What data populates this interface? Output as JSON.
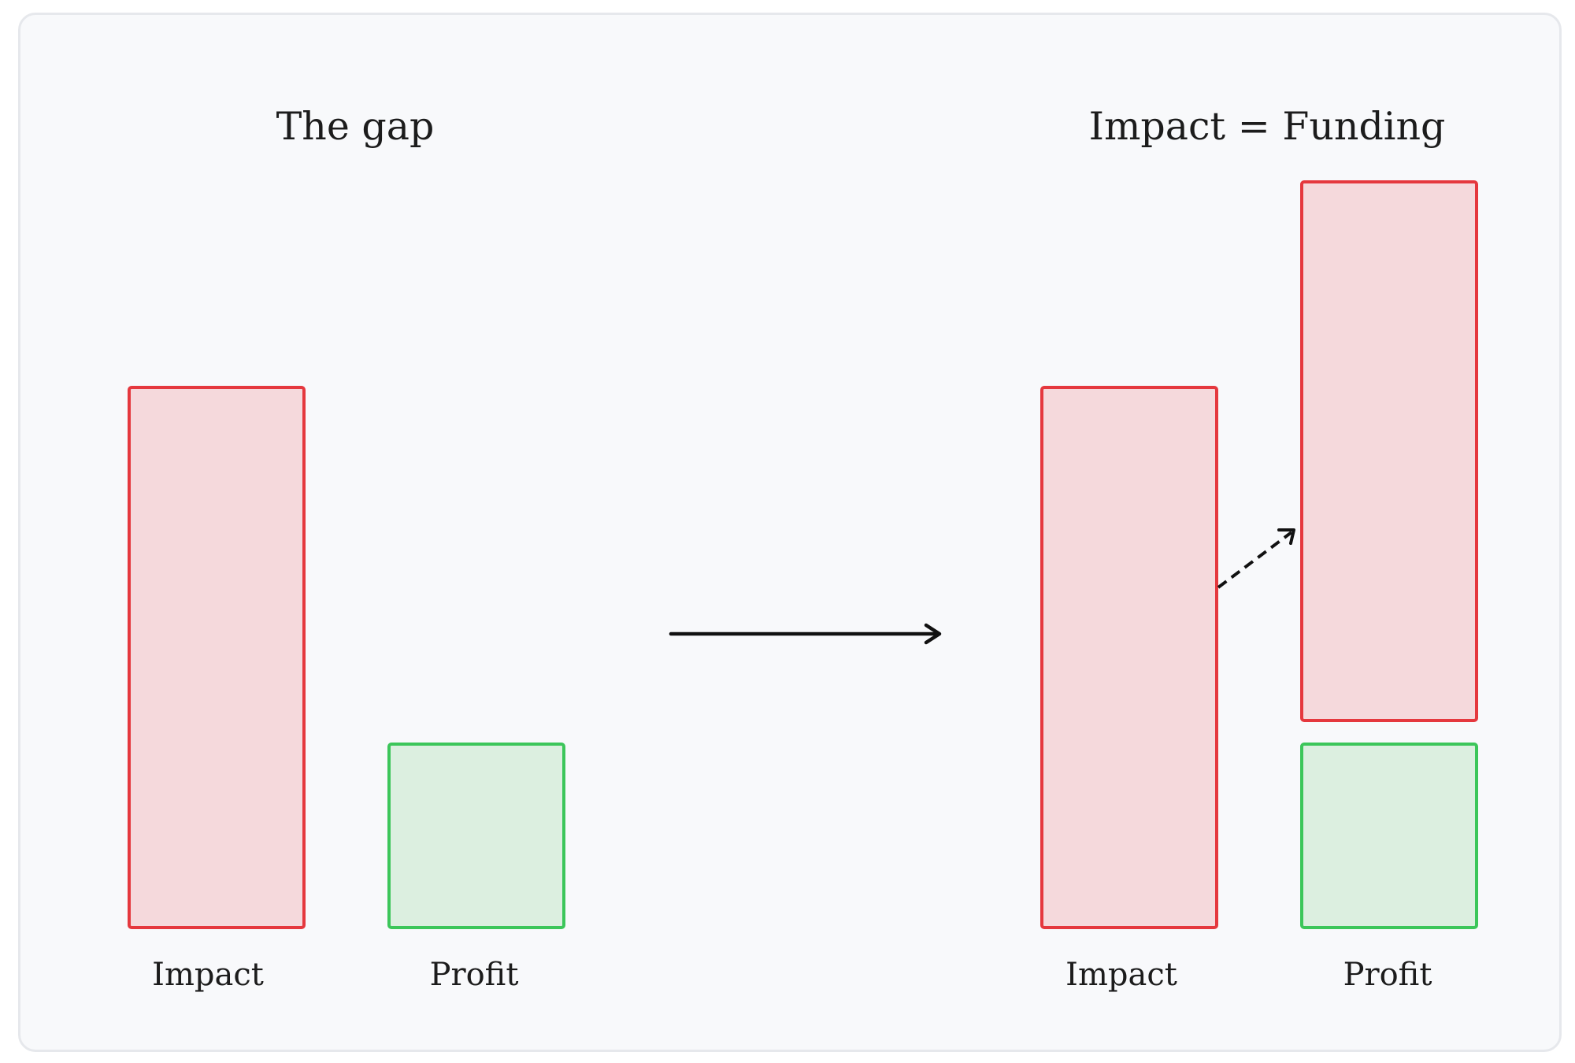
{
  "left_panel": {
    "title": "The gap",
    "bars": [
      {
        "label": "Impact",
        "color": "#e5383e",
        "fill": "#f5d9dc"
      },
      {
        "label": "Profit",
        "color": "#3cc65a",
        "fill": "#dcefe0"
      }
    ]
  },
  "right_panel": {
    "title": "Impact = Funding",
    "bars": [
      {
        "label": "Impact",
        "color": "#e5383e",
        "fill": "#f5d9dc"
      },
      {
        "label": "Profit",
        "color": "#3cc65a",
        "fill": "#dcefe0"
      }
    ]
  },
  "connectors": {
    "main_arrow": "solid-arrow-icon",
    "transfer_arrow": "dashed-arrow-icon"
  }
}
